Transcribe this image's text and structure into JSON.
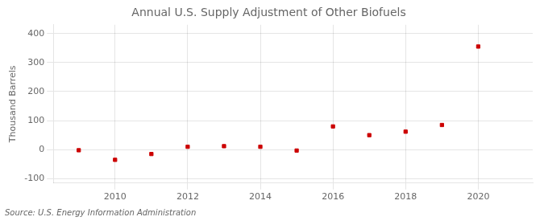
{
  "chart_data": {
    "type": "scatter",
    "title": "Annual U.S. Supply Adjustment of Other Biofuels",
    "y_label": "Thousand Barrels",
    "annotations": [
      "Source: U.S. Energy Information Administration"
    ],
    "x": [
      2009,
      2010,
      2011,
      2012,
      2013,
      2014,
      2015,
      2016,
      2017,
      2018,
      2019,
      2020
    ],
    "values": [
      -2,
      -35,
      -15,
      10,
      12,
      10,
      -3,
      80,
      50,
      62,
      85,
      355
    ],
    "color": "#cc0000",
    "marker": "square",
    "xlim": [
      2008.3,
      2021.5
    ],
    "xticks": [
      2010,
      2012,
      2014,
      2016,
      2018,
      2020
    ],
    "ylim": [
      -115,
      430
    ],
    "yticks": [
      -100,
      0,
      100,
      200,
      300,
      400
    ],
    "grid": true
  }
}
